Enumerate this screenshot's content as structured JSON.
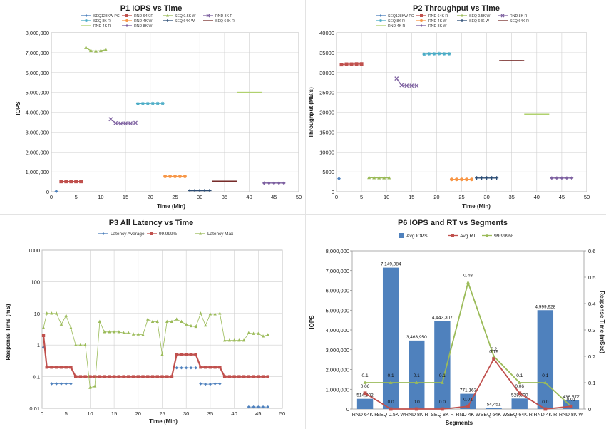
{
  "chart_data": [
    {
      "id": "p1",
      "type": "scatter",
      "title": "P1 IOPS vs Time",
      "xlabel": "Time (Min)",
      "ylabel": "IOPS",
      "xlim": [
        0,
        50
      ],
      "ylim": [
        0,
        8000000
      ],
      "xticks": [
        0,
        5,
        10,
        15,
        20,
        25,
        30,
        35,
        40,
        45,
        50
      ],
      "yticks": [
        0,
        1000000,
        2000000,
        3000000,
        4000000,
        5000000,
        6000000,
        7000000,
        8000000
      ],
      "ytick_labels": [
        "0",
        "1,000,000",
        "2,000,000",
        "3,000,000",
        "4,000,000",
        "5,000,000",
        "6,000,000",
        "7,000,000",
        "8,000,000"
      ],
      "xtick_labels": [
        "0",
        "5",
        "10",
        "15",
        "20",
        "25",
        "30",
        "35",
        "40",
        "45",
        "50"
      ],
      "grid": true,
      "legend_position": "top",
      "series": [
        {
          "name": "SEQ128KW PC",
          "color": "#4f81bd",
          "marker": "diamond",
          "x": [
            1
          ],
          "y": [
            20000
          ]
        },
        {
          "name": "RND 64K R",
          "color": "#c0504d",
          "marker": "square",
          "x": [
            2,
            3,
            4,
            5,
            6
          ],
          "y": [
            514902,
            514902,
            514902,
            514902,
            514902
          ]
        },
        {
          "name": "SEQ 0.5K W",
          "color": "#9bbb59",
          "marker": "triangle",
          "x": [
            7,
            8,
            9,
            10,
            11
          ],
          "y": [
            7250000,
            7100000,
            7080000,
            7100000,
            7149084
          ]
        },
        {
          "name": "RND 8K R",
          "color": "#8064a2",
          "marker": "x",
          "x": [
            12,
            13,
            14,
            15,
            16,
            17
          ],
          "y": [
            3650000,
            3450000,
            3430000,
            3440000,
            3440000,
            3463950
          ]
        },
        {
          "name": "SEQ 8K R",
          "color": "#4bacc6",
          "marker": "star",
          "x": [
            17.5,
            18.5,
            19.5,
            20.5,
            21.5,
            22.5
          ],
          "y": [
            4430000,
            4440000,
            4440000,
            4445000,
            4443307,
            4443307
          ]
        },
        {
          "name": "RND 4K W",
          "color": "#f79646",
          "marker": "circle",
          "x": [
            23,
            24,
            25,
            26,
            27
          ],
          "y": [
            771163,
            771163,
            771163,
            771163,
            771163
          ]
        },
        {
          "name": "SEQ 64K W",
          "color": "#2c4d75",
          "marker": "plus",
          "x": [
            28,
            29,
            30,
            31,
            32
          ],
          "y": [
            54451,
            54451,
            54451,
            54451,
            54451
          ]
        },
        {
          "name": "SEQ 64K R",
          "color": "#772c2a",
          "marker": "dash",
          "x": [
            33,
            34,
            35,
            36,
            37
          ],
          "y": [
            528690,
            528690,
            528690,
            528690,
            528690
          ]
        },
        {
          "name": "RND 4K R",
          "color": "#b0d16e",
          "marker": "dash",
          "x": [
            38,
            39,
            40,
            41,
            42
          ],
          "y": [
            4999928,
            4999928,
            4999928,
            4999928,
            4999928
          ]
        },
        {
          "name": "RND 8K W",
          "color": "#7d60a0",
          "marker": "diamond",
          "x": [
            43,
            44,
            45,
            46,
            47
          ],
          "y": [
            436577,
            436577,
            436577,
            436577,
            436577
          ]
        }
      ]
    },
    {
      "id": "p2",
      "type": "scatter",
      "title": "P2 Throughput vs Time",
      "xlabel": "Time (Min)",
      "ylabel": "Throughput (MB/s)",
      "xlim": [
        0,
        50
      ],
      "ylim": [
        0,
        40000
      ],
      "xticks": [
        0,
        5,
        10,
        15,
        20,
        25,
        30,
        35,
        40,
        45,
        50
      ],
      "yticks": [
        0,
        5000,
        10000,
        15000,
        20000,
        25000,
        30000,
        35000,
        40000
      ],
      "ytick_labels": [
        "0",
        "5000",
        "10000",
        "15000",
        "20000",
        "25000",
        "30000",
        "35000",
        "40000"
      ],
      "xtick_labels": [
        "0",
        "5",
        "10",
        "15",
        "20",
        "25",
        "30",
        "35",
        "40",
        "45",
        "50"
      ],
      "grid": true,
      "legend_position": "top",
      "series": [
        {
          "name": "SEQ128KW PC",
          "color": "#4f81bd",
          "marker": "diamond",
          "x": [
            0.5
          ],
          "y": [
            3300
          ]
        },
        {
          "name": "RND 64K R",
          "color": "#c0504d",
          "marker": "square",
          "x": [
            1,
            2,
            3,
            4,
            5
          ],
          "y": [
            32000,
            32100,
            32100,
            32150,
            32150
          ]
        },
        {
          "name": "SEQ 0.5K W",
          "color": "#9bbb59",
          "marker": "triangle",
          "x": [
            6.5,
            7.5,
            8.5,
            9.5,
            10.5
          ],
          "y": [
            3550,
            3500,
            3480,
            3480,
            3500
          ]
        },
        {
          "name": "RND 8K R",
          "color": "#8064a2",
          "marker": "x",
          "x": [
            12,
            13,
            14,
            15,
            16
          ],
          "y": [
            28500,
            26800,
            26700,
            26700,
            26700
          ]
        },
        {
          "name": "SEQ 8K R",
          "color": "#4bacc6",
          "marker": "star",
          "x": [
            17.5,
            18.5,
            19.5,
            20.5,
            21.5,
            22.5
          ],
          "y": [
            34600,
            34700,
            34700,
            34750,
            34700,
            34700
          ]
        },
        {
          "name": "RND 4K W",
          "color": "#f79646",
          "marker": "circle",
          "x": [
            23,
            24,
            25,
            26,
            27
          ],
          "y": [
            3100,
            3100,
            3100,
            3100,
            3100
          ]
        },
        {
          "name": "SEQ 64K W",
          "color": "#2c4d75",
          "marker": "plus",
          "x": [
            28,
            29,
            30,
            31,
            32
          ],
          "y": [
            3450,
            3450,
            3450,
            3450,
            3450
          ]
        },
        {
          "name": "SEQ 64K R",
          "color": "#772c2a",
          "marker": "dash",
          "x": [
            33,
            34,
            35,
            36,
            37
          ],
          "y": [
            33000,
            33000,
            33000,
            33000,
            33000
          ]
        },
        {
          "name": "RND 4K R",
          "color": "#b0d16e",
          "marker": "dash",
          "x": [
            38,
            39,
            40,
            41,
            42
          ],
          "y": [
            19500,
            19500,
            19500,
            19500,
            19500
          ]
        },
        {
          "name": "RND 8K W",
          "color": "#7d60a0",
          "marker": "diamond",
          "x": [
            43,
            44,
            45,
            46,
            47
          ],
          "y": [
            3450,
            3450,
            3450,
            3450,
            3450
          ]
        }
      ]
    },
    {
      "id": "p3",
      "type": "line",
      "title": "P3 All Latency vs Time",
      "xlabel": "Time (Min)",
      "ylabel": "Response Time (mS)",
      "xlim": [
        0,
        50
      ],
      "ylim": [
        0.01,
        1000
      ],
      "yscale": "log",
      "xticks": [
        0,
        5,
        10,
        15,
        20,
        25,
        30,
        35,
        40,
        45,
        50
      ],
      "yticks": [
        0.01,
        0.1,
        1,
        10,
        100,
        1000
      ],
      "ytick_labels": [
        "0.01",
        "0.1",
        "1",
        "10",
        "100",
        "1000"
      ],
      "xtick_labels": [
        "0",
        "5",
        "10",
        "15",
        "20",
        "25",
        "30",
        "35",
        "40",
        "45",
        "50"
      ],
      "grid": true,
      "legend_position": "top",
      "series": [
        {
          "name": "Latency Average",
          "color": "#4f81bd",
          "marker": "diamond",
          "segments": [
            {
              "x": [
                0.3
              ],
              "y": [
                0.85
              ]
            },
            {
              "x": [
                2,
                3,
                4,
                5,
                6
              ],
              "y": [
                0.06,
                0.06,
                0.06,
                0.06,
                0.06
              ]
            },
            {
              "x": [
                28,
                29,
                30,
                31,
                32
              ],
              "y": [
                0.19,
                0.19,
                0.19,
                0.19,
                0.19
              ]
            },
            {
              "x": [
                33,
                34,
                35,
                36,
                37
              ],
              "y": [
                0.06,
                0.058,
                0.058,
                0.06,
                0.06
              ]
            },
            {
              "x": [
                43,
                44,
                45,
                46,
                47
              ],
              "y": [
                0.011,
                0.011,
                0.011,
                0.011,
                0.011
              ]
            }
          ]
        },
        {
          "name": "99.999%",
          "color": "#c0504d",
          "marker": "square",
          "segments": [
            {
              "x": [
                0.3,
                1,
                2,
                3,
                4,
                5,
                6,
                7,
                8,
                9,
                10,
                11,
                12,
                13,
                14,
                15,
                16,
                17,
                18,
                19,
                20,
                21,
                22,
                23,
                24,
                25,
                26,
                27,
                28,
                29,
                30,
                31,
                32,
                33,
                34,
                35,
                36,
                37,
                38,
                39,
                40,
                41,
                42,
                43,
                44,
                45,
                46,
                47
              ],
              "y": [
                2,
                0.2,
                0.2,
                0.2,
                0.2,
                0.2,
                0.2,
                0.1,
                0.1,
                0.1,
                0.1,
                0.1,
                0.1,
                0.1,
                0.1,
                0.1,
                0.1,
                0.1,
                0.1,
                0.1,
                0.1,
                0.1,
                0.1,
                0.1,
                0.1,
                0.1,
                0.1,
                0.1,
                0.5,
                0.5,
                0.5,
                0.5,
                0.5,
                0.2,
                0.2,
                0.2,
                0.2,
                0.2,
                0.1,
                0.1,
                0.1,
                0.1,
                0.1,
                0.1,
                0.1,
                0.1,
                0.1,
                0.1
              ]
            }
          ]
        },
        {
          "name": "Latency Max",
          "color": "#9bbb59",
          "marker": "triangle",
          "segments": [
            {
              "x": [
                0.3,
                1,
                2,
                3,
                4,
                5,
                6,
                7,
                8,
                9,
                10,
                11,
                12,
                13,
                14,
                15,
                16,
                17,
                18,
                19,
                20,
                21,
                22,
                23,
                24,
                25,
                26,
                27,
                28,
                29,
                30,
                31,
                32,
                33,
                34,
                35,
                36,
                37,
                38,
                39,
                40,
                41,
                42,
                43,
                44,
                45,
                46,
                47
              ],
              "y": [
                3.5,
                10,
                10,
                10,
                4.5,
                8.5,
                3.5,
                1,
                1,
                1,
                0.045,
                0.05,
                5.5,
                2.6,
                2.6,
                2.6,
                2.6,
                2.4,
                2.4,
                2.2,
                2.2,
                2.1,
                6.5,
                5.5,
                5.5,
                0.5,
                5.5,
                5.5,
                6.5,
                5.5,
                4.5,
                4,
                3.8,
                10,
                4.2,
                9.5,
                9.5,
                10,
                1.4,
                1.4,
                1.4,
                1.4,
                1.4,
                2.4,
                2.3,
                2.3,
                1.9,
                2.1
              ]
            }
          ]
        }
      ]
    },
    {
      "id": "p6",
      "type": "bar",
      "title": "P6 IOPS and RT vs Segments",
      "xlabel": "Segments",
      "ylabel": "IOPS",
      "y2label": "Response Time (mSec)",
      "ylim": [
        0,
        8000000
      ],
      "y2lim": [
        0,
        0.6
      ],
      "yticks": [
        0,
        1000000,
        2000000,
        3000000,
        4000000,
        5000000,
        6000000,
        7000000,
        8000000
      ],
      "ytick_labels": [
        "0",
        "1,000,000",
        "2,000,000",
        "3,000,000",
        "4,000,000",
        "5,000,000",
        "6,000,000",
        "7,000,000",
        "8,000,000"
      ],
      "y2ticks": [
        0,
        0.1,
        0.2,
        0.3,
        0.4,
        0.5,
        0.6
      ],
      "y2tick_labels": [
        "0",
        "0.1",
        "0.2",
        "0.3",
        "0.4",
        "0.5",
        "0.6"
      ],
      "grid": false,
      "legend_position": "top",
      "categories": [
        "RND 64K R",
        "SEQ 0.5K W",
        "RND 8K R",
        "SEQ 8K R",
        "RND 4K W",
        "SEQ 64K W",
        "SEQ 64K R",
        "RND 4K R",
        "RND 8K W"
      ],
      "series": [
        {
          "name": "Avg IOPS",
          "type": "bar",
          "axis": "left",
          "color": "#4f81bd",
          "values": [
            514902,
            7149084,
            3463950,
            4443307,
            771163,
            54451,
            528690,
            4999928,
            436577
          ],
          "labels": [
            "514,902",
            "7,149,084",
            "3,463,950",
            "4,443,307",
            "771,163",
            "54,451",
            "528,690",
            "4,999,928",
            "436,577"
          ]
        },
        {
          "name": "Avg RT",
          "type": "line",
          "axis": "right",
          "color": "#c0504d",
          "values": [
            0.06,
            0.0,
            0.0,
            0.0,
            0.01,
            0.19,
            0.06,
            0.0,
            0.01
          ],
          "labels": [
            "0.06",
            "0.0",
            "0.0",
            "0.0",
            "0.01",
            "0.19",
            "0.06",
            "0.0",
            "0.01"
          ]
        },
        {
          "name": "99.999%",
          "type": "line",
          "axis": "right",
          "color": "#9bbb59",
          "values": [
            0.1,
            0.1,
            0.1,
            0.1,
            0.48,
            0.2,
            0.1,
            0.1,
            0.01
          ],
          "labels": [
            "0.1",
            "0.1",
            "0.1",
            "0.1",
            "0.48",
            "0.2",
            "0.1",
            "0.1",
            ""
          ]
        }
      ]
    }
  ]
}
